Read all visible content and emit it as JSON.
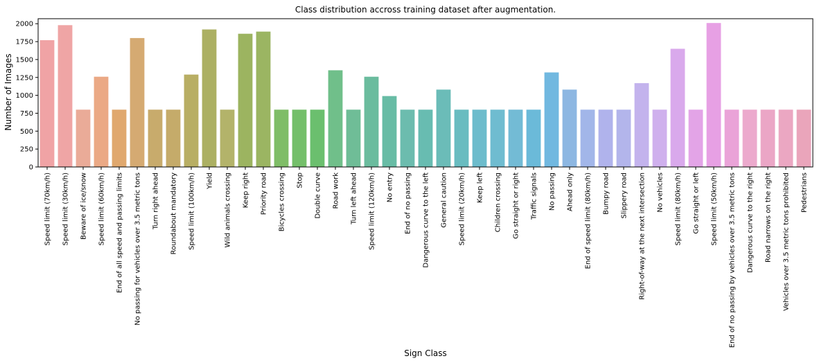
{
  "chart_data": {
    "type": "bar",
    "title": "Class distribution accross training dataset after augmentation.",
    "xlabel": "Sign Class",
    "ylabel": "Number of Images",
    "ylim": [
      0,
      2070
    ],
    "yticks": [
      0,
      250,
      500,
      750,
      1000,
      1250,
      1500,
      1750,
      2000
    ],
    "grid": false,
    "categories": [
      "Speed limit (70km/h)",
      "Speed limit (30km/h)",
      "Beware of ice/snow",
      "Speed limit (60km/h)",
      "End of all speed and passing limits",
      "No passing for vehicles over 3.5 metric tons",
      "Turn right ahead",
      "Roundabout mandatory",
      "Speed limit (100km/h)",
      "Yield",
      "Wild animals crossing",
      "Keep right",
      "Priority road",
      "Bicycles crossing",
      "Stop",
      "Double curve",
      "Road work",
      "Turn left ahead",
      "Speed limit (120km/h)",
      "No entry",
      "End of no passing",
      "Dangerous curve to the left",
      "General caution",
      "Speed limit (20km/h)",
      "Keep left",
      "Children crossing",
      "Go straight or right",
      "Traffic signals",
      "No passing",
      "Ahead only",
      "End of speed limit (80km/h)",
      "Bumpy road",
      "Slippery road",
      "Right-of-way at the next intersection",
      "No vehicles",
      "Speed limit (80km/h)",
      "Go straight or left",
      "Speed limit (50km/h)",
      "End of no passing by vehicles over 3.5 metric tons",
      "Dangerous curve to the right",
      "Road narrows on the right",
      "Vehicles over 3.5 metric tons prohibited",
      "Pedestrians"
    ],
    "values": [
      1770,
      1980,
      800,
      1260,
      800,
      1800,
      800,
      800,
      1290,
      1920,
      800,
      1860,
      1890,
      800,
      800,
      800,
      1350,
      800,
      1260,
      990,
      800,
      800,
      1080,
      800,
      800,
      800,
      800,
      800,
      1320,
      1080,
      800,
      800,
      800,
      1170,
      800,
      1650,
      800,
      2010,
      800,
      800,
      800,
      800,
      800
    ],
    "colors": [
      "#f0a3a5",
      "#efa5a5",
      "#eaab98",
      "#eba985",
      "#e0a86e",
      "#d5aa72",
      "#c8ab6c",
      "#c5ab6a",
      "#b8ae64",
      "#acb063",
      "#b3b36a",
      "#9cb460",
      "#9bb562",
      "#7fbd67",
      "#74bf6a",
      "#6bbf6e",
      "#70bf8a",
      "#6fbd97",
      "#6bbc9e",
      "#68bca5",
      "#6cbcae",
      "#68bcb1",
      "#6bbcb8",
      "#69bcc0",
      "#6dbccc",
      "#6fbcd0",
      "#73bbd5",
      "#6bbad9",
      "#71b8e0",
      "#8db7e2",
      "#a2b6e9",
      "#b0b3ec",
      "#b3b5eb",
      "#c3b3ed",
      "#cfb0ed",
      "#d9a9ec",
      "#e3a4e7",
      "#e7a0e4",
      "#eaa3d8",
      "#ecaacd",
      "#eba6c6",
      "#eba7c2",
      "#eaa5bb"
    ]
  }
}
